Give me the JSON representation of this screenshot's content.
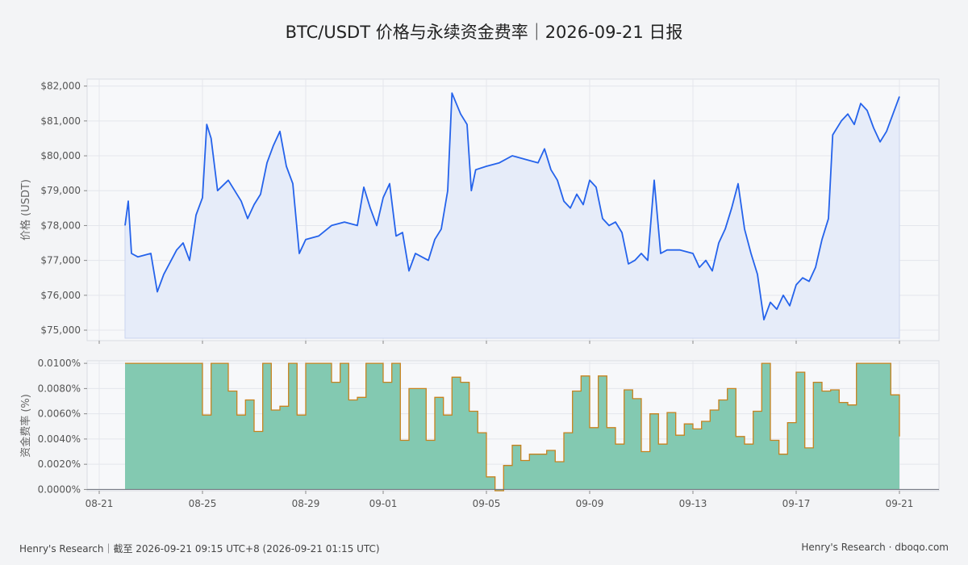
{
  "title": "BTC/USDT 价格与永续资金费率｜2026-09-21 日报",
  "footer": {
    "left": "Henry's Research｜截至 2026-09-21 09:15 UTC+8 (2026-09-21 01:15 UTC)",
    "right": "Henry's Research · dboqo.com"
  },
  "colors": {
    "price_line": "#2563eb",
    "price_fill": "#e6ecf9",
    "funding_fill": "#83c9b1",
    "funding_edge": "#c8821e",
    "panel_bg": "#f7f8fa"
  },
  "chart_data": [
    {
      "type": "line",
      "title": "",
      "ylabel": "价格 (USDT)",
      "y_ticks": [
        "$75,000",
        "$76,000",
        "$77,000",
        "$78,000",
        "$79,000",
        "$80,000",
        "$81,000",
        "$82,000"
      ],
      "ylim": [
        74700,
        82200
      ],
      "grid": true,
      "series": [
        {
          "x": [
            "08-22",
            "08-22.5",
            "08-23",
            "08-23.5",
            "08-24",
            "08-24.5",
            "08-25",
            "08-25.5",
            "08-26",
            "08-26.5",
            "08-27",
            "08-27.5",
            "08-28",
            "08-28.5",
            "08-29",
            "08-29.5",
            "08-30",
            "08-30.5",
            "08-31",
            "08-31.5",
            "09-01",
            "09-01.5",
            "09-02",
            "09-02.5",
            "09-03",
            "09-03.5",
            "09-04",
            "09-04.5",
            "09-05",
            "09-05.5",
            "09-06",
            "09-06.5",
            "09-07",
            "09-07.5",
            "09-08",
            "09-08.5",
            "09-09",
            "09-09.5",
            "09-10",
            "09-10.5",
            "09-11",
            "09-11.5",
            "09-12",
            "09-12.5",
            "09-13",
            "09-13.5",
            "09-14",
            "09-14.5",
            "09-15",
            "09-15.5",
            "09-16",
            "09-16.5",
            "09-17",
            "09-17.5",
            "09-18",
            "09-18.5",
            "09-19",
            "09-19.5",
            "09-20",
            "09-20.5",
            "09-21"
          ],
          "values": [
            {
              "t": "2026-08-22 00:00",
              "v": 78000
            },
            {
              "t": "2026-08-22 03:00",
              "v": 78700
            },
            {
              "t": "2026-08-22 06:00",
              "v": 77200
            },
            {
              "t": "2026-08-22 12:00",
              "v": 77100
            },
            {
              "t": "2026-08-23 00:00",
              "v": 77200
            },
            {
              "t": "2026-08-23 06:00",
              "v": 76100
            },
            {
              "t": "2026-08-23 12:00",
              "v": 76600
            },
            {
              "t": "2026-08-24 00:00",
              "v": 77300
            },
            {
              "t": "2026-08-24 06:00",
              "v": 77500
            },
            {
              "t": "2026-08-24 12:00",
              "v": 77000
            },
            {
              "t": "2026-08-24 18:00",
              "v": 78300
            },
            {
              "t": "2026-08-25 00:00",
              "v": 78800
            },
            {
              "t": "2026-08-25 04:00",
              "v": 80900
            },
            {
              "t": "2026-08-25 08:00",
              "v": 80500
            },
            {
              "t": "2026-08-25 14:00",
              "v": 79000
            },
            {
              "t": "2026-08-26 00:00",
              "v": 79300
            },
            {
              "t": "2026-08-26 12:00",
              "v": 78700
            },
            {
              "t": "2026-08-26 18:00",
              "v": 78200
            },
            {
              "t": "2026-08-27 00:00",
              "v": 78600
            },
            {
              "t": "2026-08-27 06:00",
              "v": 78900
            },
            {
              "t": "2026-08-27 12:00",
              "v": 79800
            },
            {
              "t": "2026-08-27 18:00",
              "v": 80300
            },
            {
              "t": "2026-08-28 00:00",
              "v": 80700
            },
            {
              "t": "2026-08-28 06:00",
              "v": 79700
            },
            {
              "t": "2026-08-28 12:00",
              "v": 79200
            },
            {
              "t": "2026-08-28 18:00",
              "v": 77200
            },
            {
              "t": "2026-08-29 00:00",
              "v": 77600
            },
            {
              "t": "2026-08-29 12:00",
              "v": 77700
            },
            {
              "t": "2026-08-30 00:00",
              "v": 78000
            },
            {
              "t": "2026-08-30 12:00",
              "v": 78100
            },
            {
              "t": "2026-08-31 00:00",
              "v": 78000
            },
            {
              "t": "2026-08-31 06:00",
              "v": 79100
            },
            {
              "t": "2026-08-31 12:00",
              "v": 78500
            },
            {
              "t": "2026-08-31 18:00",
              "v": 78000
            },
            {
              "t": "2026-09-01 00:00",
              "v": 78800
            },
            {
              "t": "2026-09-01 06:00",
              "v": 79200
            },
            {
              "t": "2026-09-01 12:00",
              "v": 77700
            },
            {
              "t": "2026-09-01 18:00",
              "v": 77800
            },
            {
              "t": "2026-09-02 00:00",
              "v": 76700
            },
            {
              "t": "2026-09-02 06:00",
              "v": 77200
            },
            {
              "t": "2026-09-02 12:00",
              "v": 77100
            },
            {
              "t": "2026-09-02 18:00",
              "v": 77000
            },
            {
              "t": "2026-09-03 00:00",
              "v": 77600
            },
            {
              "t": "2026-09-03 06:00",
              "v": 77900
            },
            {
              "t": "2026-09-03 12:00",
              "v": 79000
            },
            {
              "t": "2026-09-03 16:00",
              "v": 81800
            },
            {
              "t": "2026-09-04 00:00",
              "v": 81200
            },
            {
              "t": "2026-09-04 06:00",
              "v": 80900
            },
            {
              "t": "2026-09-04 10:00",
              "v": 79000
            },
            {
              "t": "2026-09-04 14:00",
              "v": 79600
            },
            {
              "t": "2026-09-05 00:00",
              "v": 79700
            },
            {
              "t": "2026-09-05 12:00",
              "v": 79800
            },
            {
              "t": "2026-09-06 00:00",
              "v": 80000
            },
            {
              "t": "2026-09-06 12:00",
              "v": 79900
            },
            {
              "t": "2026-09-07 00:00",
              "v": 79800
            },
            {
              "t": "2026-09-07 06:00",
              "v": 80200
            },
            {
              "t": "2026-09-07 12:00",
              "v": 79600
            },
            {
              "t": "2026-09-07 18:00",
              "v": 79300
            },
            {
              "t": "2026-09-08 00:00",
              "v": 78700
            },
            {
              "t": "2026-09-08 06:00",
              "v": 78500
            },
            {
              "t": "2026-09-08 12:00",
              "v": 78900
            },
            {
              "t": "2026-09-08 18:00",
              "v": 78600
            },
            {
              "t": "2026-09-09 00:00",
              "v": 79300
            },
            {
              "t": "2026-09-09 06:00",
              "v": 79100
            },
            {
              "t": "2026-09-09 12:00",
              "v": 78200
            },
            {
              "t": "2026-09-09 18:00",
              "v": 78000
            },
            {
              "t": "2026-09-10 00:00",
              "v": 78100
            },
            {
              "t": "2026-09-10 06:00",
              "v": 77800
            },
            {
              "t": "2026-09-10 12:00",
              "v": 76900
            },
            {
              "t": "2026-09-10 18:00",
              "v": 77000
            },
            {
              "t": "2026-09-11 00:00",
              "v": 77200
            },
            {
              "t": "2026-09-11 06:00",
              "v": 77000
            },
            {
              "t": "2026-09-11 12:00",
              "v": 79300
            },
            {
              "t": "2026-09-11 18:00",
              "v": 77200
            },
            {
              "t": "2026-09-12 00:00",
              "v": 77300
            },
            {
              "t": "2026-09-12 12:00",
              "v": 77300
            },
            {
              "t": "2026-09-13 00:00",
              "v": 77200
            },
            {
              "t": "2026-09-13 06:00",
              "v": 76800
            },
            {
              "t": "2026-09-13 12:00",
              "v": 77000
            },
            {
              "t": "2026-09-13 18:00",
              "v": 76700
            },
            {
              "t": "2026-09-14 00:00",
              "v": 77500
            },
            {
              "t": "2026-09-14 06:00",
              "v": 77900
            },
            {
              "t": "2026-09-14 12:00",
              "v": 78500
            },
            {
              "t": "2026-09-14 18:00",
              "v": 79200
            },
            {
              "t": "2026-09-15 00:00",
              "v": 77900
            },
            {
              "t": "2026-09-15 06:00",
              "v": 77200
            },
            {
              "t": "2026-09-15 12:00",
              "v": 76600
            },
            {
              "t": "2026-09-15 18:00",
              "v": 75300
            },
            {
              "t": "2026-09-16 00:00",
              "v": 75800
            },
            {
              "t": "2026-09-16 06:00",
              "v": 75600
            },
            {
              "t": "2026-09-16 12:00",
              "v": 76000
            },
            {
              "t": "2026-09-16 18:00",
              "v": 75700
            },
            {
              "t": "2026-09-17 00:00",
              "v": 76300
            },
            {
              "t": "2026-09-17 06:00",
              "v": 76500
            },
            {
              "t": "2026-09-17 12:00",
              "v": 76400
            },
            {
              "t": "2026-09-17 18:00",
              "v": 76800
            },
            {
              "t": "2026-09-18 00:00",
              "v": 77600
            },
            {
              "t": "2026-09-18 06:00",
              "v": 78200
            },
            {
              "t": "2026-09-18 10:00",
              "v": 80600
            },
            {
              "t": "2026-09-18 18:00",
              "v": 81000
            },
            {
              "t": "2026-09-19 00:00",
              "v": 81200
            },
            {
              "t": "2026-09-19 06:00",
              "v": 80900
            },
            {
              "t": "2026-09-19 12:00",
              "v": 81500
            },
            {
              "t": "2026-09-19 18:00",
              "v": 81300
            },
            {
              "t": "2026-09-20 00:00",
              "v": 80800
            },
            {
              "t": "2026-09-20 06:00",
              "v": 80400
            },
            {
              "t": "2026-09-20 12:00",
              "v": 80700
            },
            {
              "t": "2026-09-20 18:00",
              "v": 81200
            },
            {
              "t": "2026-09-21 00:00",
              "v": 81700
            }
          ]
        }
      ]
    },
    {
      "type": "area",
      "title": "",
      "ylabel": "资金费率 (%)",
      "y_ticks": [
        "0.0000%",
        "0.0020%",
        "0.0040%",
        "0.0060%",
        "0.0080%",
        "0.0100%"
      ],
      "ylim": [
        -0.0001,
        0.0102
      ],
      "grid": true,
      "x_ticks": [
        "08-21",
        "08-25",
        "08-29",
        "09-01",
        "09-05",
        "09-09",
        "09-13",
        "09-17",
        "09-21"
      ],
      "series": [
        {
          "step": "post",
          "values": [
            {
              "t": "2026-08-22 00:00",
              "v": 0.01
            },
            {
              "t": "2026-08-25 00:00",
              "v": 0.0059
            },
            {
              "t": "2026-08-25 08:00",
              "v": 0.01
            },
            {
              "t": "2026-08-26 00:00",
              "v": 0.0078
            },
            {
              "t": "2026-08-26 08:00",
              "v": 0.0059
            },
            {
              "t": "2026-08-26 16:00",
              "v": 0.0071
            },
            {
              "t": "2026-08-27 00:00",
              "v": 0.0046
            },
            {
              "t": "2026-08-27 08:00",
              "v": 0.01
            },
            {
              "t": "2026-08-27 16:00",
              "v": 0.0063
            },
            {
              "t": "2026-08-28 00:00",
              "v": 0.0066
            },
            {
              "t": "2026-08-28 08:00",
              "v": 0.01
            },
            {
              "t": "2026-08-28 16:00",
              "v": 0.0059
            },
            {
              "t": "2026-08-29 00:00",
              "v": 0.01
            },
            {
              "t": "2026-08-30 00:00",
              "v": 0.0085
            },
            {
              "t": "2026-08-30 08:00",
              "v": 0.01
            },
            {
              "t": "2026-08-30 16:00",
              "v": 0.0071
            },
            {
              "t": "2026-08-31 00:00",
              "v": 0.0073
            },
            {
              "t": "2026-08-31 08:00",
              "v": 0.01
            },
            {
              "t": "2026-09-01 00:00",
              "v": 0.0085
            },
            {
              "t": "2026-09-01 08:00",
              "v": 0.01
            },
            {
              "t": "2026-09-01 16:00",
              "v": 0.0039
            },
            {
              "t": "2026-09-02 00:00",
              "v": 0.008
            },
            {
              "t": "2026-09-02 16:00",
              "v": 0.0039
            },
            {
              "t": "2026-09-03 00:00",
              "v": 0.0073
            },
            {
              "t": "2026-09-03 08:00",
              "v": 0.0059
            },
            {
              "t": "2026-09-03 16:00",
              "v": 0.0089
            },
            {
              "t": "2026-09-04 00:00",
              "v": 0.0085
            },
            {
              "t": "2026-09-04 08:00",
              "v": 0.0062
            },
            {
              "t": "2026-09-04 16:00",
              "v": 0.0045
            },
            {
              "t": "2026-09-05 00:00",
              "v": 0.001
            },
            {
              "t": "2026-09-05 08:00",
              "v": -0.0001
            },
            {
              "t": "2026-09-05 16:00",
              "v": 0.0019
            },
            {
              "t": "2026-09-06 00:00",
              "v": 0.0035
            },
            {
              "t": "2026-09-06 08:00",
              "v": 0.0023
            },
            {
              "t": "2026-09-06 16:00",
              "v": 0.0028
            },
            {
              "t": "2026-09-07 08:00",
              "v": 0.0031
            },
            {
              "t": "2026-09-07 16:00",
              "v": 0.0022
            },
            {
              "t": "2026-09-08 00:00",
              "v": 0.0045
            },
            {
              "t": "2026-09-08 08:00",
              "v": 0.0078
            },
            {
              "t": "2026-09-08 16:00",
              "v": 0.009
            },
            {
              "t": "2026-09-09 00:00",
              "v": 0.0049
            },
            {
              "t": "2026-09-09 08:00",
              "v": 0.009
            },
            {
              "t": "2026-09-09 16:00",
              "v": 0.0049
            },
            {
              "t": "2026-09-10 00:00",
              "v": 0.0036
            },
            {
              "t": "2026-09-10 08:00",
              "v": 0.0079
            },
            {
              "t": "2026-09-10 16:00",
              "v": 0.0072
            },
            {
              "t": "2026-09-11 00:00",
              "v": 0.003
            },
            {
              "t": "2026-09-11 08:00",
              "v": 0.006
            },
            {
              "t": "2026-09-11 16:00",
              "v": 0.0036
            },
            {
              "t": "2026-09-12 00:00",
              "v": 0.0061
            },
            {
              "t": "2026-09-12 08:00",
              "v": 0.0043
            },
            {
              "t": "2026-09-12 16:00",
              "v": 0.0052
            },
            {
              "t": "2026-09-13 00:00",
              "v": 0.0048
            },
            {
              "t": "2026-09-13 08:00",
              "v": 0.0054
            },
            {
              "t": "2026-09-13 16:00",
              "v": 0.0063
            },
            {
              "t": "2026-09-14 00:00",
              "v": 0.0071
            },
            {
              "t": "2026-09-14 08:00",
              "v": 0.008
            },
            {
              "t": "2026-09-14 16:00",
              "v": 0.0042
            },
            {
              "t": "2026-09-15 00:00",
              "v": 0.0036
            },
            {
              "t": "2026-09-15 08:00",
              "v": 0.0062
            },
            {
              "t": "2026-09-15 16:00",
              "v": 0.01
            },
            {
              "t": "2026-09-16 00:00",
              "v": 0.0039
            },
            {
              "t": "2026-09-16 08:00",
              "v": 0.0028
            },
            {
              "t": "2026-09-16 16:00",
              "v": 0.0053
            },
            {
              "t": "2026-09-17 00:00",
              "v": 0.0093
            },
            {
              "t": "2026-09-17 08:00",
              "v": 0.0033
            },
            {
              "t": "2026-09-17 16:00",
              "v": 0.0085
            },
            {
              "t": "2026-09-18 00:00",
              "v": 0.0078
            },
            {
              "t": "2026-09-18 08:00",
              "v": 0.0079
            },
            {
              "t": "2026-09-18 16:00",
              "v": 0.0069
            },
            {
              "t": "2026-09-19 00:00",
              "v": 0.0067
            },
            {
              "t": "2026-09-19 08:00",
              "v": 0.01
            },
            {
              "t": "2026-09-20 16:00",
              "v": 0.0075
            },
            {
              "t": "2026-09-21 00:00",
              "v": 0.0042
            }
          ]
        }
      ]
    }
  ]
}
